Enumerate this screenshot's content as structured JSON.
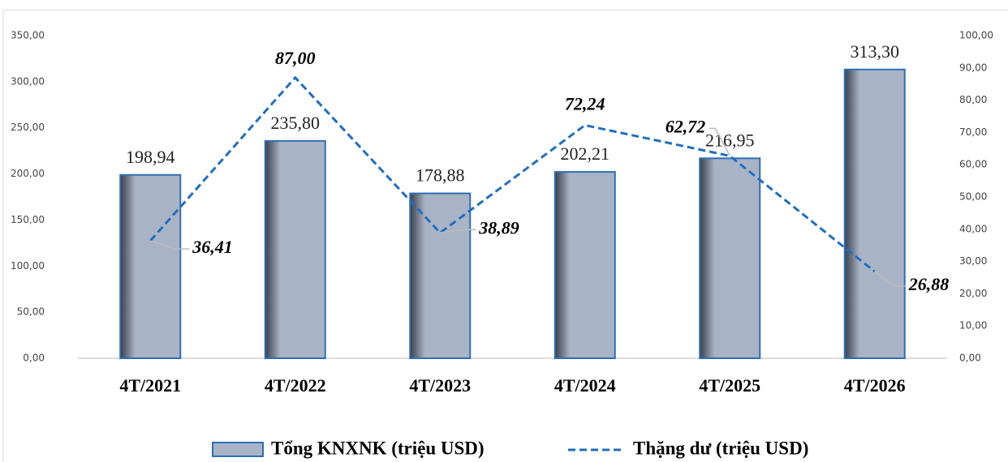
{
  "chart_data": {
    "type": "bar",
    "categories": [
      "4T/2021",
      "4T/2022",
      "4T/2023",
      "4T/2024",
      "4T/2025",
      "4T/2026"
    ],
    "series": [
      {
        "name": "Tổng KNXNK (triệu USD)",
        "type": "bar",
        "color": "#a9b3c6",
        "edge": "#2e6fb5",
        "values": [
          198.94,
          235.8,
          178.88,
          202.21,
          216.95,
          313.3
        ],
        "value_labels": [
          "198,94",
          "235,80",
          "178,88",
          "202,21",
          "216,95",
          "313,30"
        ]
      },
      {
        "name": "Thặng dư (triệu USD)",
        "type": "line",
        "axis": "y2",
        "color": "#1f6fc0",
        "values": [
          36.41,
          87.0,
          38.89,
          72.24,
          62.72,
          26.88
        ],
        "value_labels": [
          "36,41",
          "87,00",
          "38,89",
          "72,24",
          "62,72",
          "26,88"
        ]
      }
    ],
    "ylim": [
      0,
      350
    ],
    "yticks": [
      {
        "value": 0,
        "label": "0,00"
      },
      {
        "value": 50,
        "label": "50,00"
      },
      {
        "value": 100,
        "label": "100,00"
      },
      {
        "value": 150,
        "label": "150,00"
      },
      {
        "value": 200,
        "label": "200,00"
      },
      {
        "value": 250,
        "label": "250,00"
      },
      {
        "value": 300,
        "label": "300,00"
      },
      {
        "value": 350,
        "label": "350,00"
      }
    ],
    "y2lim": [
      0,
      100
    ],
    "y2ticks": [
      {
        "value": 0,
        "label": "0,00"
      },
      {
        "value": 10,
        "label": "10,00"
      },
      {
        "value": 20,
        "label": "20,00"
      },
      {
        "value": 30,
        "label": "30,00"
      },
      {
        "value": 40,
        "label": "40,00"
      },
      {
        "value": 50,
        "label": "50,00"
      },
      {
        "value": 60,
        "label": "60,00"
      },
      {
        "value": 70,
        "label": "70,00"
      },
      {
        "value": 80,
        "label": "80,00"
      },
      {
        "value": 90,
        "label": "90,00"
      },
      {
        "value": 100,
        "label": "100,00"
      }
    ],
    "legend": "bottom"
  }
}
